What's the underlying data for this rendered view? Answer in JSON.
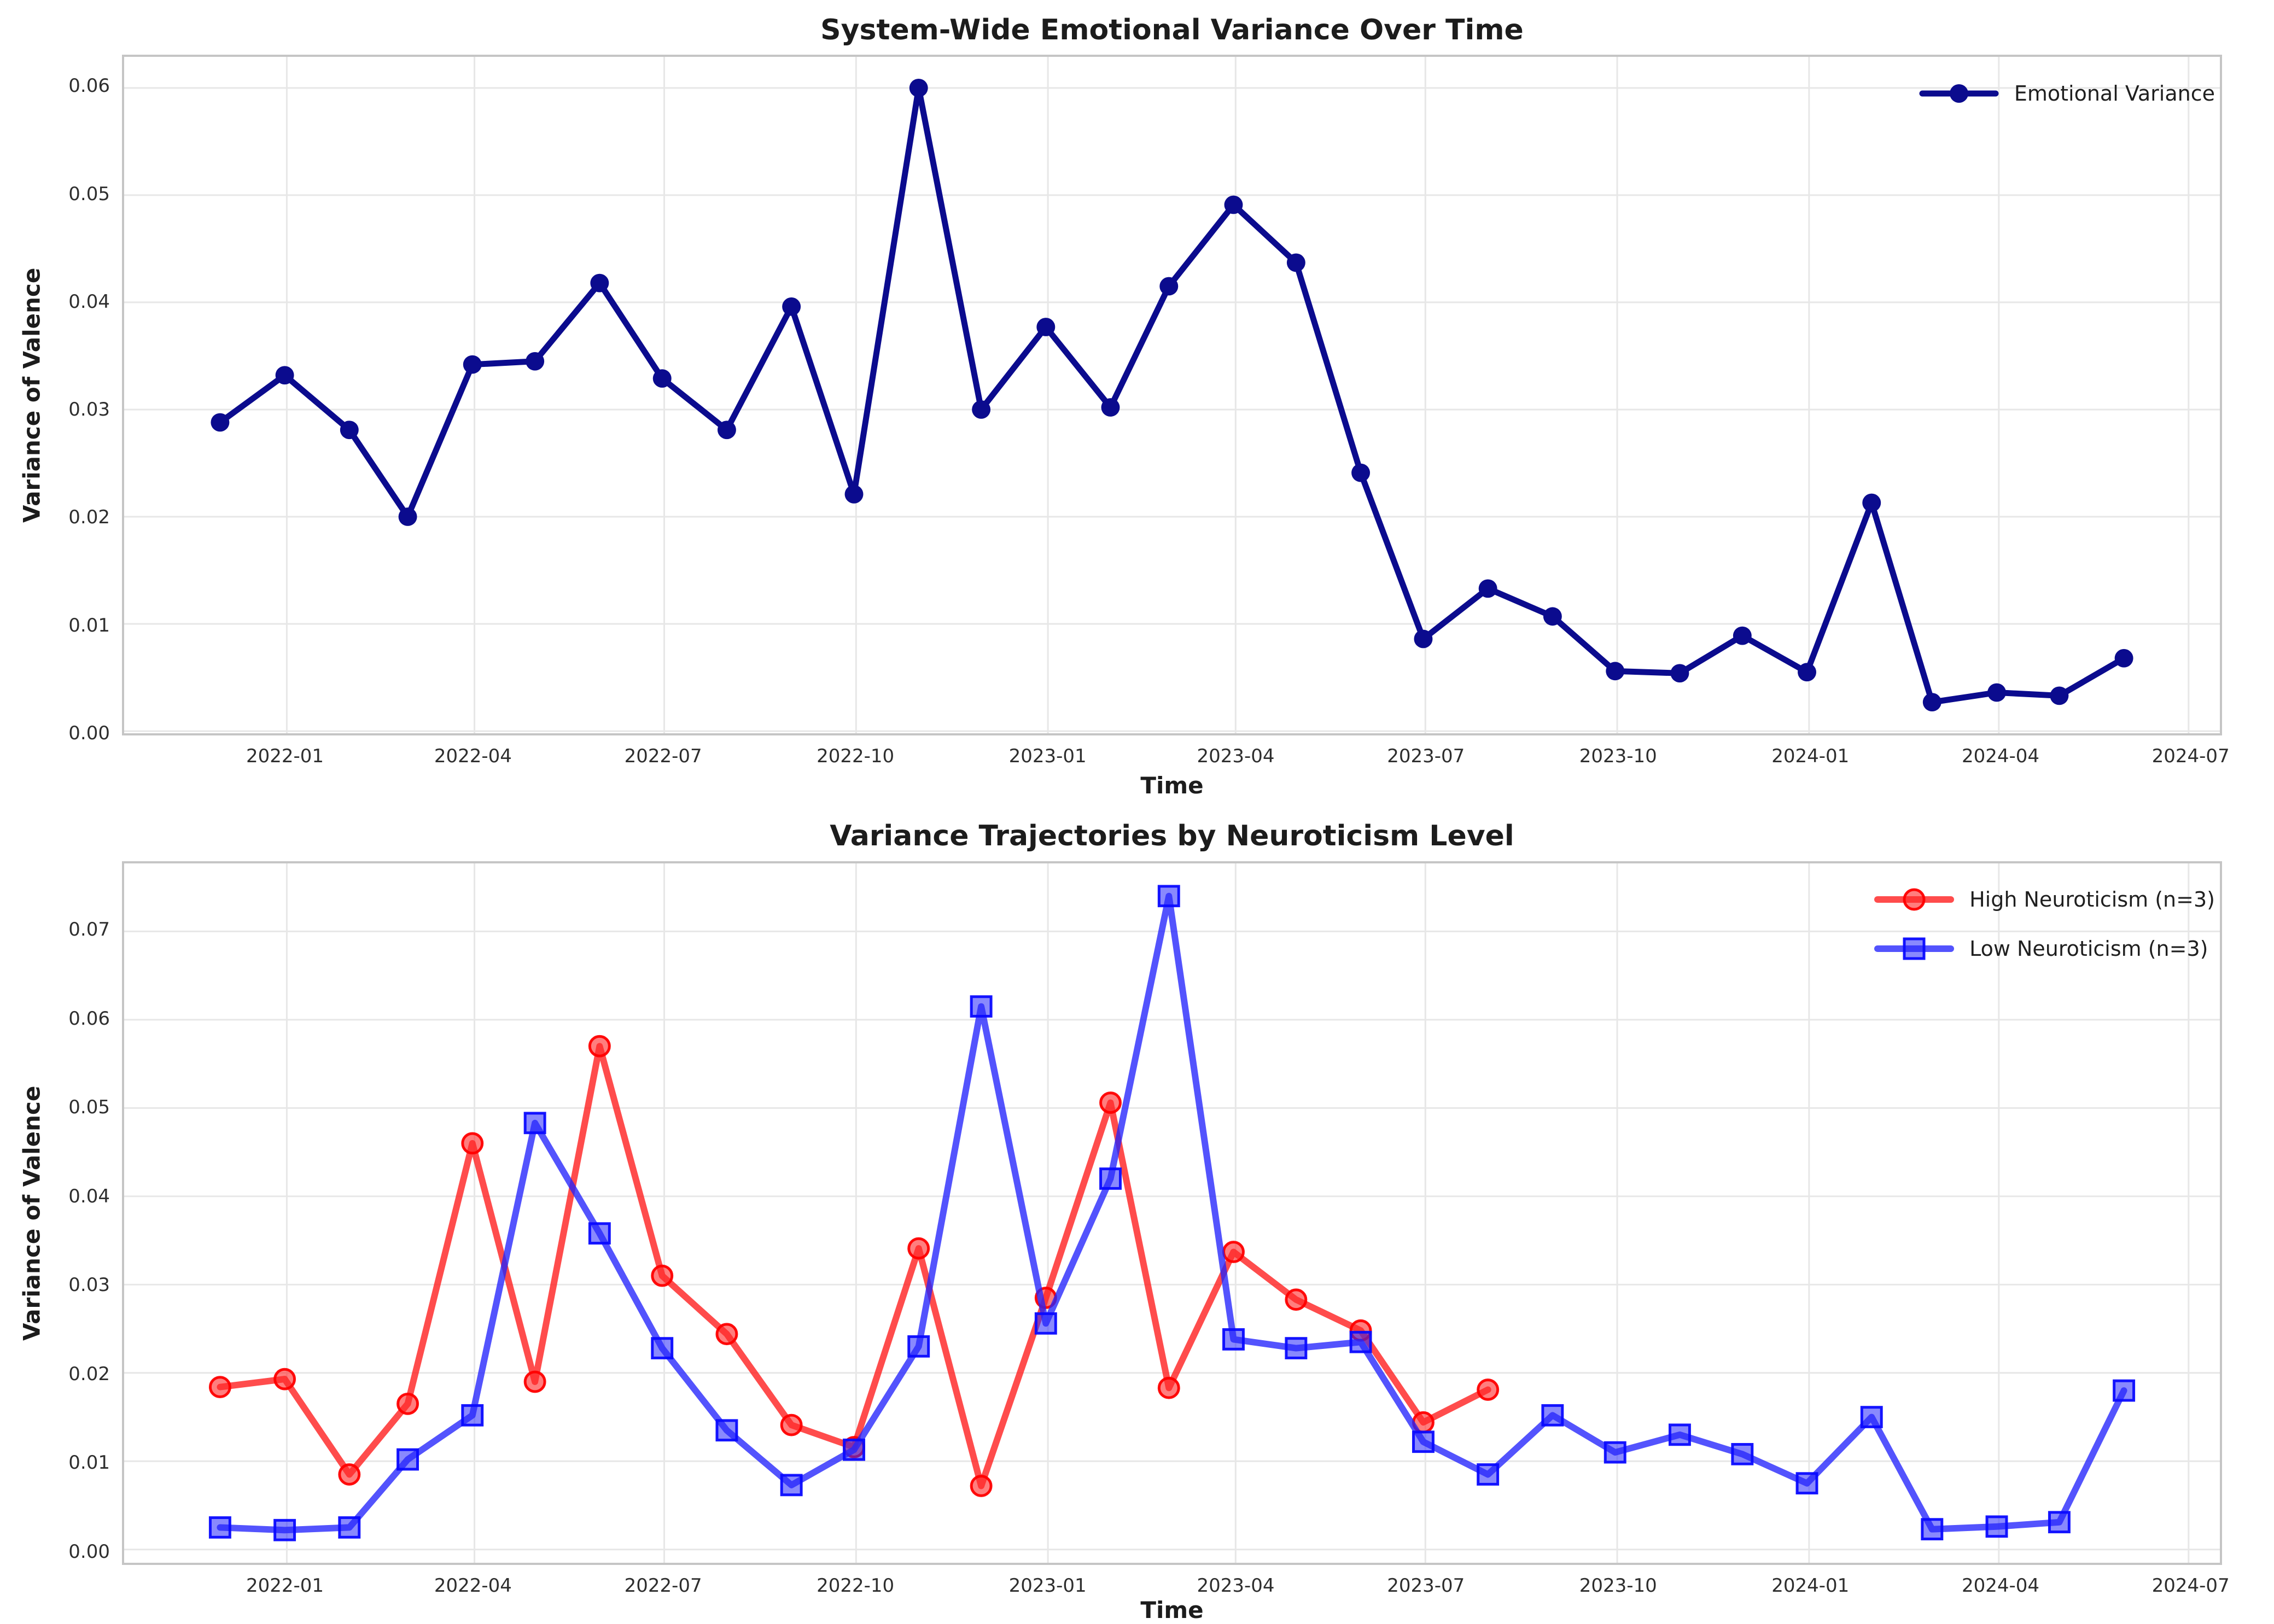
{
  "figure": {
    "background": "#ffffff",
    "grid_color": "#e7e7e7",
    "spine_color": "#c5c5c5"
  },
  "chart_data": [
    {
      "type": "line",
      "title": "System-Wide Emotional Variance Over Time",
      "xlabel": "Time",
      "ylabel": "Variance of Valence",
      "grid": true,
      "legend_position": "upper right",
      "x_tick_labels": [
        "2022-01",
        "2022-04",
        "2022-07",
        "2022-10",
        "2023-01",
        "2023-04",
        "2023-07",
        "2023-10",
        "2024-01",
        "2024-04",
        "2024-07"
      ],
      "x_tick_dates": [
        "2022-01-01",
        "2022-04-01",
        "2022-07-01",
        "2022-10-01",
        "2023-01-01",
        "2023-04-01",
        "2023-07-01",
        "2023-10-01",
        "2024-01-01",
        "2024-04-01",
        "2024-07-01"
      ],
      "y_tick_labels": [
        "0.00",
        "0.01",
        "0.02",
        "0.03",
        "0.04",
        "0.05",
        "0.06"
      ],
      "y_ticks": [
        0,
        0.01,
        0.02,
        0.03,
        0.04,
        0.05,
        0.06
      ],
      "xlim": [
        "2021-10-15",
        "2024-07-16"
      ],
      "ylim": [
        -0.0002,
        0.0629
      ],
      "series": [
        {
          "name": "Emotional Variance",
          "marker": "circle",
          "line_color": "#0b0b8e",
          "line_width": 11,
          "marker_size": 17,
          "marker_fill": "#0b0b8e",
          "marker_edge": "#0b0b8e",
          "marker_edge_width": 0,
          "x": [
            "2021-11-30",
            "2021-12-31",
            "2022-01-31",
            "2022-02-28",
            "2022-03-31",
            "2022-04-30",
            "2022-05-31",
            "2022-06-30",
            "2022-07-31",
            "2022-08-31",
            "2022-09-30",
            "2022-10-31",
            "2022-11-30",
            "2022-12-31",
            "2023-01-31",
            "2023-02-28",
            "2023-03-31",
            "2023-04-30",
            "2023-05-31",
            "2023-06-30",
            "2023-07-31",
            "2023-08-31",
            "2023-09-30",
            "2023-10-31",
            "2023-11-30",
            "2023-12-31",
            "2024-01-31",
            "2024-02-29",
            "2024-03-31",
            "2024-04-30",
            "2024-05-31"
          ],
          "values": [
            0.0288,
            0.0332,
            0.0281,
            0.02,
            0.0342,
            0.0345,
            0.0418,
            0.0329,
            0.0281,
            0.0396,
            0.0221,
            0.06,
            0.03,
            0.0377,
            0.0302,
            0.0415,
            0.0491,
            0.0437,
            0.0241,
            0.0086,
            0.0133,
            0.0107,
            0.0056,
            0.0054,
            0.0089,
            0.0055,
            0.0213,
            0.0027,
            0.0036,
            0.0033,
            0.0068
          ]
        }
      ]
    },
    {
      "type": "line",
      "title": "Variance Trajectories by Neuroticism Level",
      "xlabel": "Time",
      "ylabel": "Variance of Valence",
      "grid": true,
      "legend_position": "upper right",
      "x_tick_labels": [
        "2022-01",
        "2022-04",
        "2022-07",
        "2022-10",
        "2023-01",
        "2023-04",
        "2023-07",
        "2023-10",
        "2024-01",
        "2024-04",
        "2024-07"
      ],
      "x_tick_dates": [
        "2022-01-01",
        "2022-04-01",
        "2022-07-01",
        "2022-10-01",
        "2023-01-01",
        "2023-04-01",
        "2023-07-01",
        "2023-10-01",
        "2024-01-01",
        "2024-04-01",
        "2024-07-01"
      ],
      "y_tick_labels": [
        "0.00",
        "0.01",
        "0.02",
        "0.03",
        "0.04",
        "0.05",
        "0.06",
        "0.07"
      ],
      "y_ticks": [
        0,
        0.01,
        0.02,
        0.03,
        0.04,
        0.05,
        0.06,
        0.07
      ],
      "xlim": [
        "2021-10-15",
        "2024-07-16"
      ],
      "ylim": [
        -0.0015,
        0.0777
      ],
      "series": [
        {
          "name": "High Neuroticism (n=3)",
          "marker": "circle",
          "line_color": "rgba(255,25,25,0.78)",
          "line_width": 12,
          "marker_size": 18,
          "marker_fill": "rgba(255,40,40,0.60)",
          "marker_edge": "rgba(255,0,0,0.95)",
          "marker_edge_width": 5,
          "x": [
            "2021-11-30",
            "2021-12-31",
            "2022-01-31",
            "2022-02-28",
            "2022-03-31",
            "2022-04-30",
            "2022-05-31",
            "2022-06-30",
            "2022-07-31",
            "2022-08-31",
            "2022-09-30",
            "2022-10-31",
            "2022-11-30",
            "2022-12-31",
            "2023-01-31",
            "2023-02-28",
            "2023-03-31",
            "2023-04-30",
            "2023-05-31",
            "2023-06-30",
            "2023-07-31"
          ],
          "values": [
            0.0184,
            0.0193,
            0.0085,
            0.0165,
            0.046,
            0.019,
            0.057,
            0.031,
            0.0244,
            0.0141,
            0.0116,
            0.0341,
            0.0072,
            0.0285,
            0.0506,
            0.0183,
            0.0337,
            0.0283,
            0.0248,
            0.0144,
            0.0181
          ]
        },
        {
          "name": "Low Neuroticism (n=3)",
          "marker": "square",
          "line_color": "rgba(35,35,252,0.78)",
          "line_width": 12,
          "marker_size": 18,
          "marker_fill": "rgba(40,40,252,0.55)",
          "marker_edge": "rgba(10,10,255,0.95)",
          "marker_edge_width": 5,
          "x": [
            "2021-11-30",
            "2021-12-31",
            "2022-01-31",
            "2022-02-28",
            "2022-03-31",
            "2022-04-30",
            "2022-05-31",
            "2022-06-30",
            "2022-07-31",
            "2022-08-31",
            "2022-09-30",
            "2022-10-31",
            "2022-11-30",
            "2022-12-31",
            "2023-01-31",
            "2023-02-28",
            "2023-03-31",
            "2023-04-30",
            "2023-05-31",
            "2023-06-30",
            "2023-07-31",
            "2023-08-31",
            "2023-09-30",
            "2023-10-31",
            "2023-11-30",
            "2023-12-31",
            "2024-01-31",
            "2024-02-29",
            "2024-03-31",
            "2024-04-30",
            "2024-05-31"
          ],
          "values": [
            0.0025,
            0.0022,
            0.0025,
            0.0102,
            0.0152,
            0.0483,
            0.0358,
            0.0228,
            0.0135,
            0.0073,
            0.0113,
            0.023,
            0.0615,
            0.0256,
            0.042,
            0.074,
            0.0238,
            0.0228,
            0.0235,
            0.0122,
            0.0085,
            0.0152,
            0.011,
            0.013,
            0.0108,
            0.0075,
            0.015,
            0.0023,
            0.0026,
            0.0031,
            0.018
          ]
        }
      ]
    }
  ]
}
